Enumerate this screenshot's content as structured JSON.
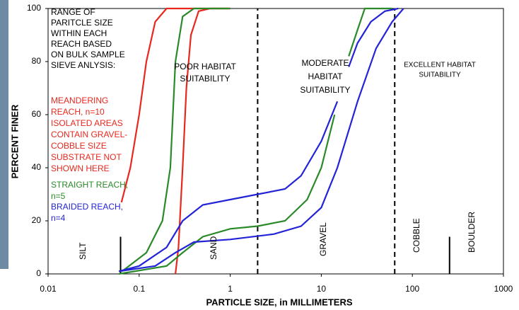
{
  "chart_data": {
    "type": "line",
    "x_label": "PARTICLE SIZE, in MILLIMETERS",
    "y_label": "PERCENT FINER",
    "log_x": true,
    "xlim": [
      0.01,
      1000
    ],
    "ylim": [
      0,
      100
    ],
    "xticks": [
      0.01,
      0.1,
      1,
      10,
      100,
      1000
    ],
    "yticks": [
      0,
      20,
      40,
      60,
      80,
      100
    ],
    "note_lines": [
      "RANGE OF",
      "PARITCLE SIZE",
      "WITHIN EACH",
      "REACH BASED",
      "ON BULK SAMPLE",
      "SIEVE ANLYSIS:"
    ],
    "series": [
      {
        "name": [
          "MEANDERING",
          "REACH, n=10",
          "ISOLATED AREAS",
          "CONTAIN GRAVEL-",
          "COBBLE SIZE",
          "SUBSTRATE NOT",
          "SHOWN HERE"
        ],
        "color": "#e8281e",
        "curves": [
          {
            "x": [
              0.064,
              0.08,
              0.1,
              0.12,
              0.15,
              0.2,
              1
            ],
            "y": [
              27,
              40,
              60,
              80,
              95,
              100,
              100
            ]
          },
          {
            "x": [
              0.25,
              0.27,
              0.3,
              0.33,
              0.37,
              0.45,
              0.6,
              1
            ],
            "y": [
              0,
              10,
              40,
              70,
              90,
              99,
              100,
              100
            ]
          }
        ]
      },
      {
        "name": [
          "STRAIGHT REACH,",
          "n=5"
        ],
        "color": "#2a8a2a",
        "curves": [
          {
            "x": [
              0.065,
              0.12,
              0.18,
              0.22,
              0.25,
              0.3,
              0.4,
              1
            ],
            "y": [
              1,
              8,
              20,
              40,
              80,
              97,
              100,
              100
            ]
          },
          {
            "x": [
              0.06,
              0.2,
              0.3,
              0.5,
              1,
              2,
              4,
              7,
              10,
              14
            ],
            "y": [
              0,
              3,
              8,
              14,
              17,
              18,
              20,
              28,
              40,
              60
            ]
          },
          {
            "x": [
              20,
              25,
              30,
              60
            ],
            "y": [
              82,
              92,
              100,
              100
            ]
          }
        ]
      },
      {
        "name": [
          "BRAIDED REACH,",
          "n=4"
        ],
        "color": "#2323d8",
        "curves": [
          {
            "x": [
              0.06,
              0.1,
              0.2,
              0.3,
              0.5,
              1,
              2,
              4,
              6,
              10,
              15
            ],
            "y": [
              1,
              3,
              10,
              20,
              26,
              28,
              30,
              32,
              37,
              50,
              65
            ]
          },
          {
            "x": [
              0.06,
              0.15,
              0.25,
              0.4,
              1,
              3,
              6,
              10,
              15,
              25,
              40,
              60,
              80
            ],
            "y": [
              1,
              3,
              8,
              12,
              13,
              15,
              18,
              25,
              40,
              65,
              85,
              95,
              100
            ]
          },
          {
            "x": [
              20,
              25,
              35,
              50,
              70
            ],
            "y": [
              78,
              87,
              95,
              99,
              100
            ]
          }
        ]
      }
    ],
    "zones": [
      {
        "lines": [
          "POOR HABITAT",
          "SUITABILITY"
        ]
      },
      {
        "lines": [
          "MODERATE",
          "HABITAT",
          "SUITABILITY"
        ]
      },
      {
        "lines": [
          "EXCELLENT HABITAT",
          "SUITABILITY"
        ]
      }
    ],
    "boundaries": [
      {
        "x": 0.0625,
        "style": "solid",
        "top": 14
      },
      {
        "x": 2,
        "style": "dashed",
        "top": 100
      },
      {
        "x": 64,
        "style": "dashed",
        "top": 100
      },
      {
        "x": 256,
        "style": "solid",
        "top": 14
      }
    ],
    "size_classes": [
      "SILT",
      "SAND",
      "GRAVEL",
      "COBBLE",
      "BOULDER"
    ]
  }
}
